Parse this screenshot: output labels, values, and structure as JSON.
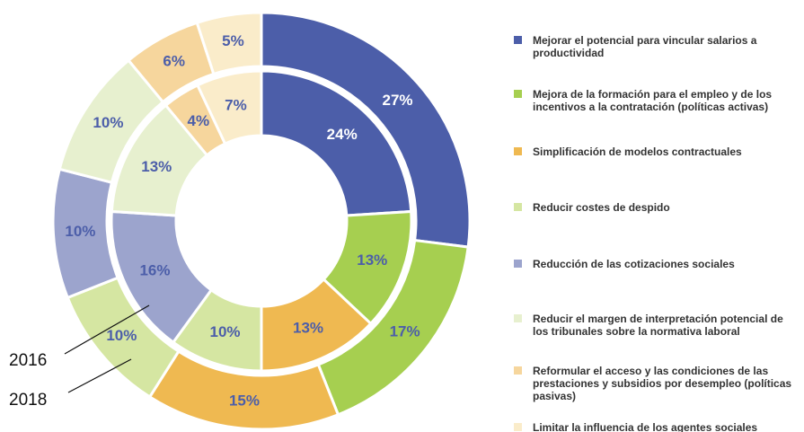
{
  "chart_data": {
    "type": "nested-donut",
    "categories": [
      "Mejorar el potencial para vincular salarios a productividad",
      "Mejora de la formación para el empleo y de los incentivos a la contratación (políticas activas)",
      "Simplificación de modelos contractuales",
      "Reducir costes de despido",
      "Reducción de las cotizaciones sociales",
      "Reducir el margen de interpretación potencial de los tribunales sobre la normativa laboral",
      "Reformular el acceso y las condiciones de las prestaciones y subsidios por desempleo (políticas pasivas)",
      "Limitar la influencia de los agentes sociales"
    ],
    "colors": [
      "#4c5ea9",
      "#a6cf50",
      "#efb951",
      "#d5e6a2",
      "#9ca4cd",
      "#e7f0cf",
      "#f6d69d",
      "#faecca"
    ],
    "label_colors": [
      "#ffffff",
      "#4c5ea9",
      "#4c5ea9",
      "#4c5ea9",
      "#4c5ea9",
      "#4c5ea9",
      "#4c5ea9",
      "#4c5ea9"
    ],
    "series": [
      {
        "name": "2016",
        "values": [
          24,
          13,
          13,
          10,
          16,
          13,
          4,
          7
        ],
        "value_labels": [
          "24%",
          "13%",
          "13%",
          "10%",
          "16%",
          "13%",
          "4%",
          "7%"
        ]
      },
      {
        "name": "2018",
        "values": [
          27,
          17,
          15,
          10,
          10,
          10,
          6,
          5
        ],
        "value_labels": [
          "27%",
          "17%",
          "15%",
          "10%",
          "10%",
          "10%",
          "6%",
          "5%"
        ]
      }
    ]
  }
}
